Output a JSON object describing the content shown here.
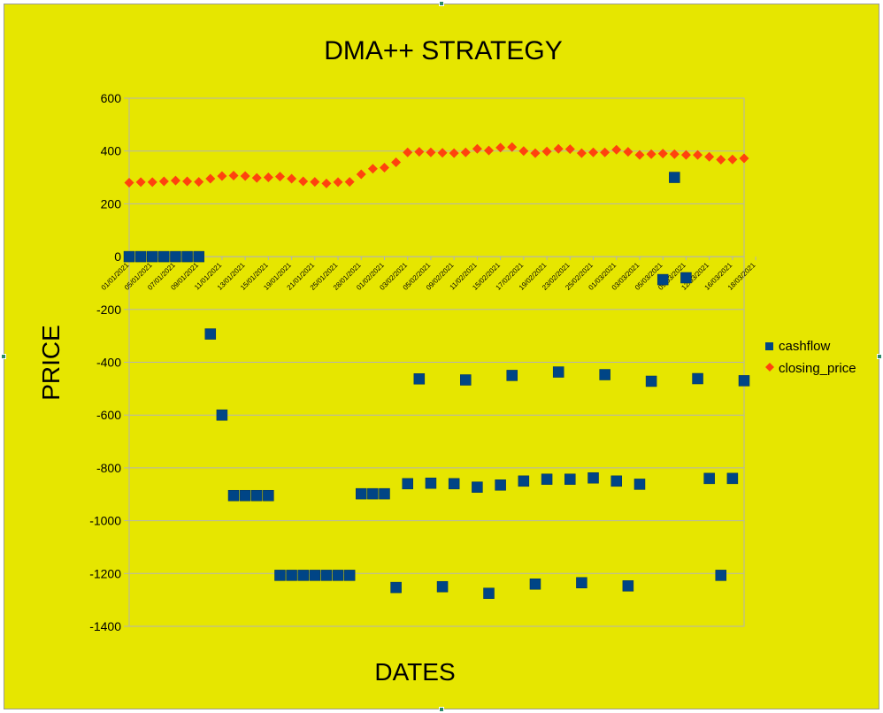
{
  "chart_data": {
    "type": "scatter",
    "title": "DMA++ STRATEGY",
    "xlabel": "DATES",
    "ylabel": "PRICE",
    "ylim": [
      -1400,
      600
    ],
    "yticks": [
      "600",
      "400",
      "200",
      "0",
      "-200",
      "-400",
      "-600",
      "-800",
      "-1000",
      "-1200",
      "-1400"
    ],
    "x_tick_labels": [
      "01/01/2021",
      "05/01/2021",
      "07/01/2021",
      "09/01/2021",
      "11/01/2021",
      "13/01/2021",
      "15/01/2021",
      "19/01/2021",
      "21/01/2021",
      "25/01/2021",
      "28/01/2021",
      "01/02/2021",
      "03/02/2021",
      "05/02/2021",
      "09/02/2021",
      "11/02/2021",
      "15/02/2021",
      "17/02/2021",
      "19/02/2021",
      "23/02/2021",
      "25/02/2021",
      "01/03/2021",
      "03/03/2021",
      "05/03/2021",
      "09/03/2021",
      "12/03/2021",
      "16/03/2021",
      "18/03/2021"
    ],
    "grid": true,
    "legend_position": "right",
    "series": [
      {
        "name": "cashflow",
        "color": "#004586",
        "marker": "square",
        "values": [
          0,
          0,
          0,
          0,
          0,
          0,
          0,
          -293,
          -600,
          -905,
          -905,
          -905,
          -905,
          -1207,
          -1207,
          -1207,
          -1207,
          -1207,
          -1207,
          -1207,
          -898,
          -898,
          -898,
          -1253,
          -860,
          -463,
          -858,
          -1250,
          -860,
          -467,
          -873,
          -1275,
          -865,
          -450,
          -850,
          -1240,
          -843,
          -437,
          -843,
          -1235,
          -838,
          -447,
          -850,
          -1247,
          -862,
          -472,
          -87,
          300,
          -80,
          -462,
          -840,
          -1207,
          -840,
          -470
        ]
      },
      {
        "name": "closing_price",
        "color": "#ff420e",
        "marker": "diamond",
        "values": [
          280,
          282,
          282,
          285,
          288,
          285,
          283,
          295,
          305,
          307,
          305,
          298,
          300,
          303,
          295,
          285,
          283,
          277,
          282,
          283,
          312,
          333,
          337,
          357,
          395,
          397,
          395,
          393,
          392,
          395,
          408,
          402,
          413,
          415,
          400,
          392,
          398,
          408,
          407,
          392,
          395,
          395,
          405,
          397,
          385,
          388,
          390,
          388,
          385,
          385,
          378,
          367,
          368,
          372
        ]
      }
    ]
  }
}
